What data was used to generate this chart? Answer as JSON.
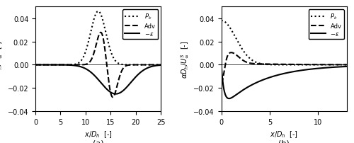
{
  "panel_a": {
    "xlim": [
      0,
      25
    ],
    "ylim": [
      -0.04,
      0.05
    ],
    "xticks": [
      0,
      5,
      10,
      15,
      20,
      25
    ],
    "yticks": [
      -0.04,
      -0.02,
      0,
      0.02,
      0.04
    ],
    "label": "(a)"
  },
  "panel_b": {
    "xlim": [
      0,
      13
    ],
    "ylim": [
      -0.04,
      0.05
    ],
    "xticks": [
      0,
      5,
      10
    ],
    "yticks": [
      -0.04,
      -0.02,
      0,
      0.02,
      0.04
    ],
    "label": "(b)"
  },
  "line_color": "#000000",
  "line_width": 1.5,
  "fig_width": 5.0,
  "fig_height": 2.03,
  "dpi": 100
}
